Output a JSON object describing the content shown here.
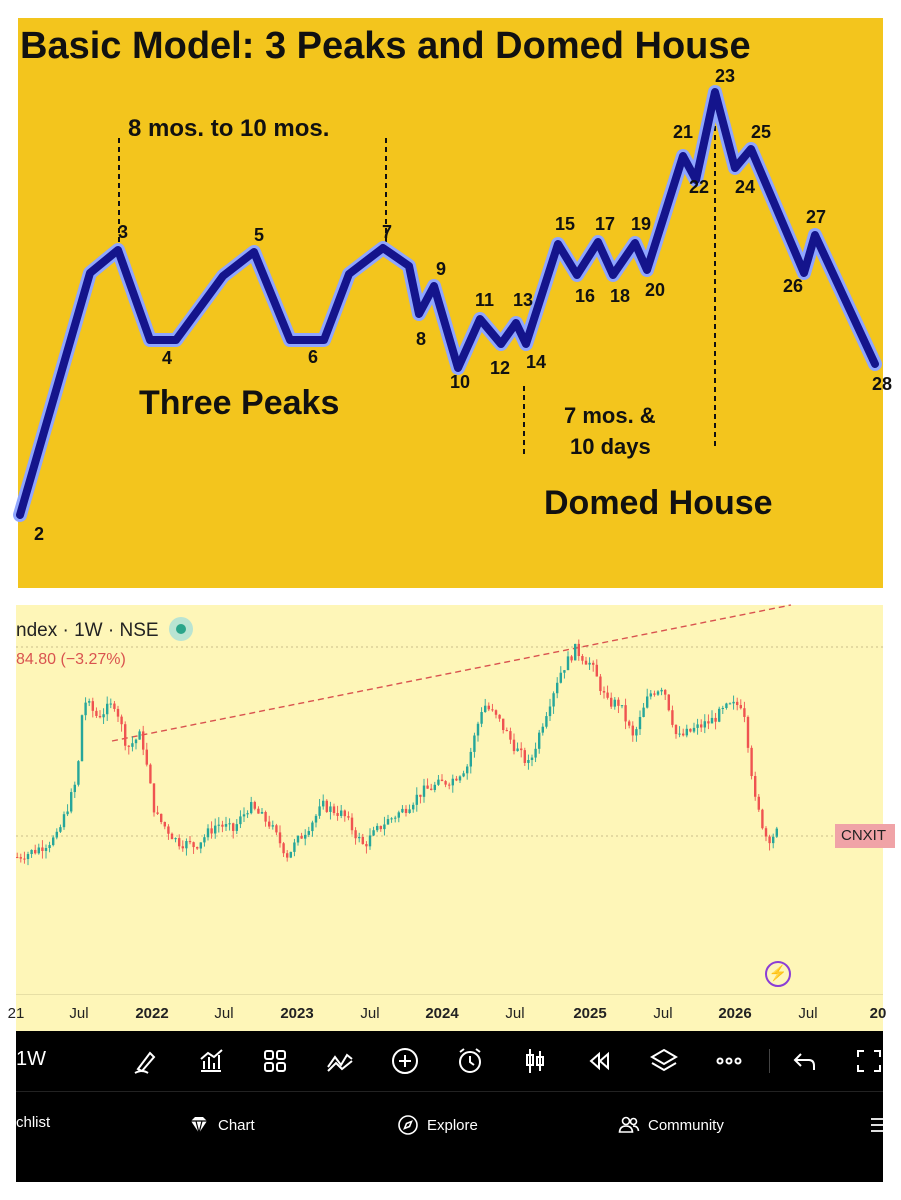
{
  "diagram": {
    "title": "Basic Model: 3 Peaks and Domed House",
    "span_label_1": "8 mos. to 10 mos.",
    "span_label_2_line1": "7 mos. &",
    "span_label_2_line2": "10 days",
    "section_1": "Three Peaks",
    "section_2": "Domed House",
    "points": [
      {
        "label": "2"
      },
      {
        "label": "3"
      },
      {
        "label": "4"
      },
      {
        "label": "5"
      },
      {
        "label": "6"
      },
      {
        "label": "7"
      },
      {
        "label": "8"
      },
      {
        "label": "9"
      },
      {
        "label": "10"
      },
      {
        "label": "11"
      },
      {
        "label": "12"
      },
      {
        "label": "13"
      },
      {
        "label": "14"
      },
      {
        "label": "15"
      },
      {
        "label": "16"
      },
      {
        "label": "17"
      },
      {
        "label": "18"
      },
      {
        "label": "19"
      },
      {
        "label": "20"
      },
      {
        "label": "21"
      },
      {
        "label": "22"
      },
      {
        "label": "23"
      },
      {
        "label": "24"
      },
      {
        "label": "25"
      },
      {
        "label": "26"
      },
      {
        "label": "27"
      },
      {
        "label": "28"
      }
    ],
    "colors": {
      "background": "#f3c51d",
      "line": "#14148c",
      "line_edge": "#8fa6ff"
    }
  },
  "chart_header": {
    "title": "ndex · 1W · NSE",
    "change": "84.80 (−3.27%)",
    "symbol_tag": "CNXIT",
    "bolt_icon": "lightning-icon"
  },
  "chart_data": {
    "type": "candlestick",
    "interval": "1W",
    "x_ticks": [
      {
        "label": "21",
        "year": false
      },
      {
        "label": "Jul",
        "year": false
      },
      {
        "label": "2022",
        "year": true
      },
      {
        "label": "Jul",
        "year": false
      },
      {
        "label": "2023",
        "year": true
      },
      {
        "label": "Jul",
        "year": false
      },
      {
        "label": "2024",
        "year": true
      },
      {
        "label": "Jul",
        "year": false
      },
      {
        "label": "2025",
        "year": true
      },
      {
        "label": "Jul",
        "year": false
      },
      {
        "label": "2026",
        "year": true
      },
      {
        "label": "Jul",
        "year": false
      },
      {
        "label": "20",
        "year": true
      }
    ],
    "price_path": [
      [
        0,
        0.17
      ],
      [
        18,
        0.2
      ],
      [
        40,
        0.26
      ],
      [
        60,
        0.52
      ],
      [
        66,
        0.88
      ],
      [
        80,
        0.8
      ],
      [
        98,
        0.86
      ],
      [
        110,
        0.66
      ],
      [
        124,
        0.72
      ],
      [
        138,
        0.36
      ],
      [
        160,
        0.24
      ],
      [
        178,
        0.22
      ],
      [
        200,
        0.32
      ],
      [
        216,
        0.29
      ],
      [
        232,
        0.4
      ],
      [
        252,
        0.32
      ],
      [
        270,
        0.18
      ],
      [
        290,
        0.3
      ],
      [
        306,
        0.4
      ],
      [
        326,
        0.36
      ],
      [
        346,
        0.22
      ],
      [
        366,
        0.32
      ],
      [
        386,
        0.38
      ],
      [
        404,
        0.46
      ],
      [
        424,
        0.5
      ],
      [
        436,
        0.52
      ],
      [
        450,
        0.58
      ],
      [
        466,
        0.86
      ],
      [
        482,
        0.78
      ],
      [
        498,
        0.66
      ],
      [
        512,
        0.58
      ],
      [
        526,
        0.78
      ],
      [
        542,
        0.99
      ],
      [
        558,
        1.1
      ],
      [
        574,
        1.03
      ],
      [
        590,
        0.86
      ],
      [
        602,
        0.86
      ],
      [
        616,
        0.7
      ],
      [
        632,
        0.9
      ],
      [
        646,
        0.94
      ],
      [
        660,
        0.7
      ],
      [
        676,
        0.74
      ],
      [
        694,
        0.78
      ],
      [
        710,
        0.84
      ],
      [
        726,
        0.86
      ],
      [
        738,
        0.42
      ],
      [
        750,
        0.25
      ],
      [
        760,
        0.28
      ]
    ],
    "trendline": "dashed red resistance line rising from 2022 peak through 2025 peak",
    "colors": {
      "up": "#26a69a",
      "down": "#ef5350",
      "trendline": "#d9534f",
      "background": "#fef6b8"
    }
  },
  "toolbar": {
    "interval_label": "1W",
    "icons": [
      "draw-icon",
      "indicators-icon",
      "layout-icon",
      "patterns-icon",
      "add-icon",
      "alert-icon",
      "candle-type-icon",
      "replay-icon",
      "layers-icon",
      "more-icon",
      "undo-icon",
      "fullscreen-icon"
    ]
  },
  "nav": {
    "watchlist": "chlist",
    "chart": "Chart",
    "explore": "Explore",
    "community": "Community"
  }
}
